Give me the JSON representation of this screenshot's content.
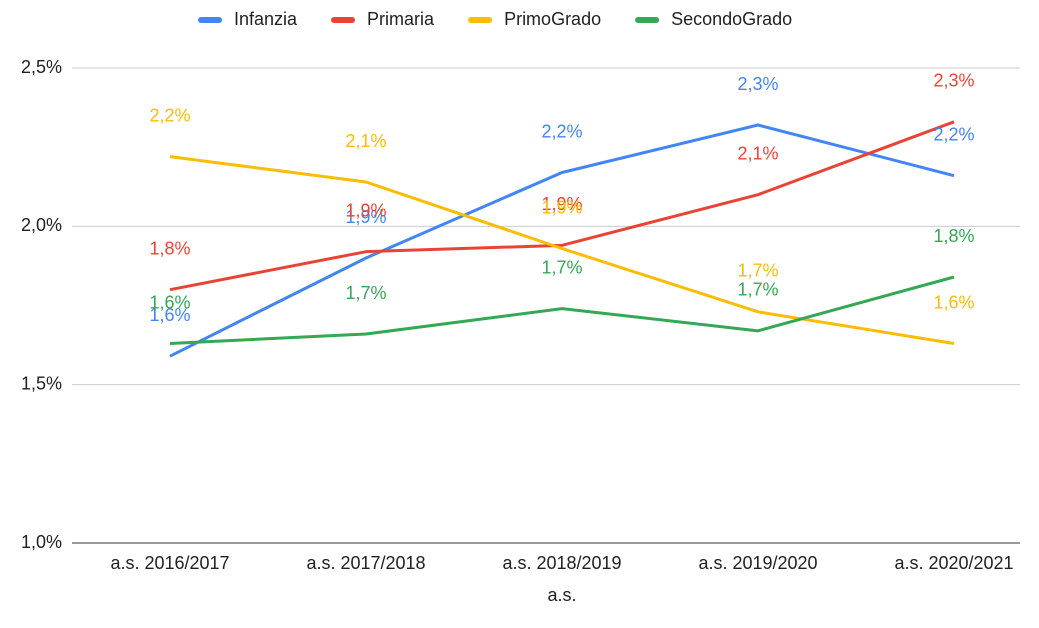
{
  "chart_data": {
    "type": "line",
    "x_label": "a.s.",
    "categories": [
      "a.s. 2016/2017",
      "a.s. 2017/2018",
      "a.s. 2018/2019",
      "a.s. 2019/2020",
      "a.s. 2020/2021"
    ],
    "series": [
      {
        "name": "Infanzia",
        "color": "#4285f4",
        "values": [
          1.59,
          1.9,
          2.17,
          2.32,
          2.16
        ],
        "value_labels": [
          "1,6%",
          "1,9%",
          "2,2%",
          "2,3%",
          "2,2%"
        ]
      },
      {
        "name": "Primaria",
        "color": "#ea4335",
        "values": [
          1.8,
          1.92,
          1.94,
          2.1,
          2.33
        ],
        "value_labels": [
          "1,8%",
          "1,9%",
          "1,9%",
          "2,1%",
          "2,3%"
        ]
      },
      {
        "name": "PrimoGrado",
        "color": "#fbbc04",
        "values": [
          2.22,
          2.14,
          1.93,
          1.73,
          1.63
        ],
        "value_labels": [
          "2,2%",
          "2,1%",
          "1,9%",
          "1,7%",
          "1,6%"
        ]
      },
      {
        "name": "SecondoGrado",
        "color": "#34a853",
        "values": [
          1.63,
          1.66,
          1.74,
          1.67,
          1.84
        ],
        "value_labels": [
          "1,6%",
          "1,7%",
          "1,7%",
          "1,7%",
          "1,8%"
        ]
      }
    ],
    "ylim": [
      1.0,
      2.5
    ],
    "yticks": [
      {
        "value": 1.0,
        "label": "1,0%"
      },
      {
        "value": 1.5,
        "label": "1,5%"
      },
      {
        "value": 2.0,
        "label": "2,0%"
      },
      {
        "value": 2.5,
        "label": "2,5%"
      }
    ],
    "grid": true,
    "legend": "top"
  }
}
